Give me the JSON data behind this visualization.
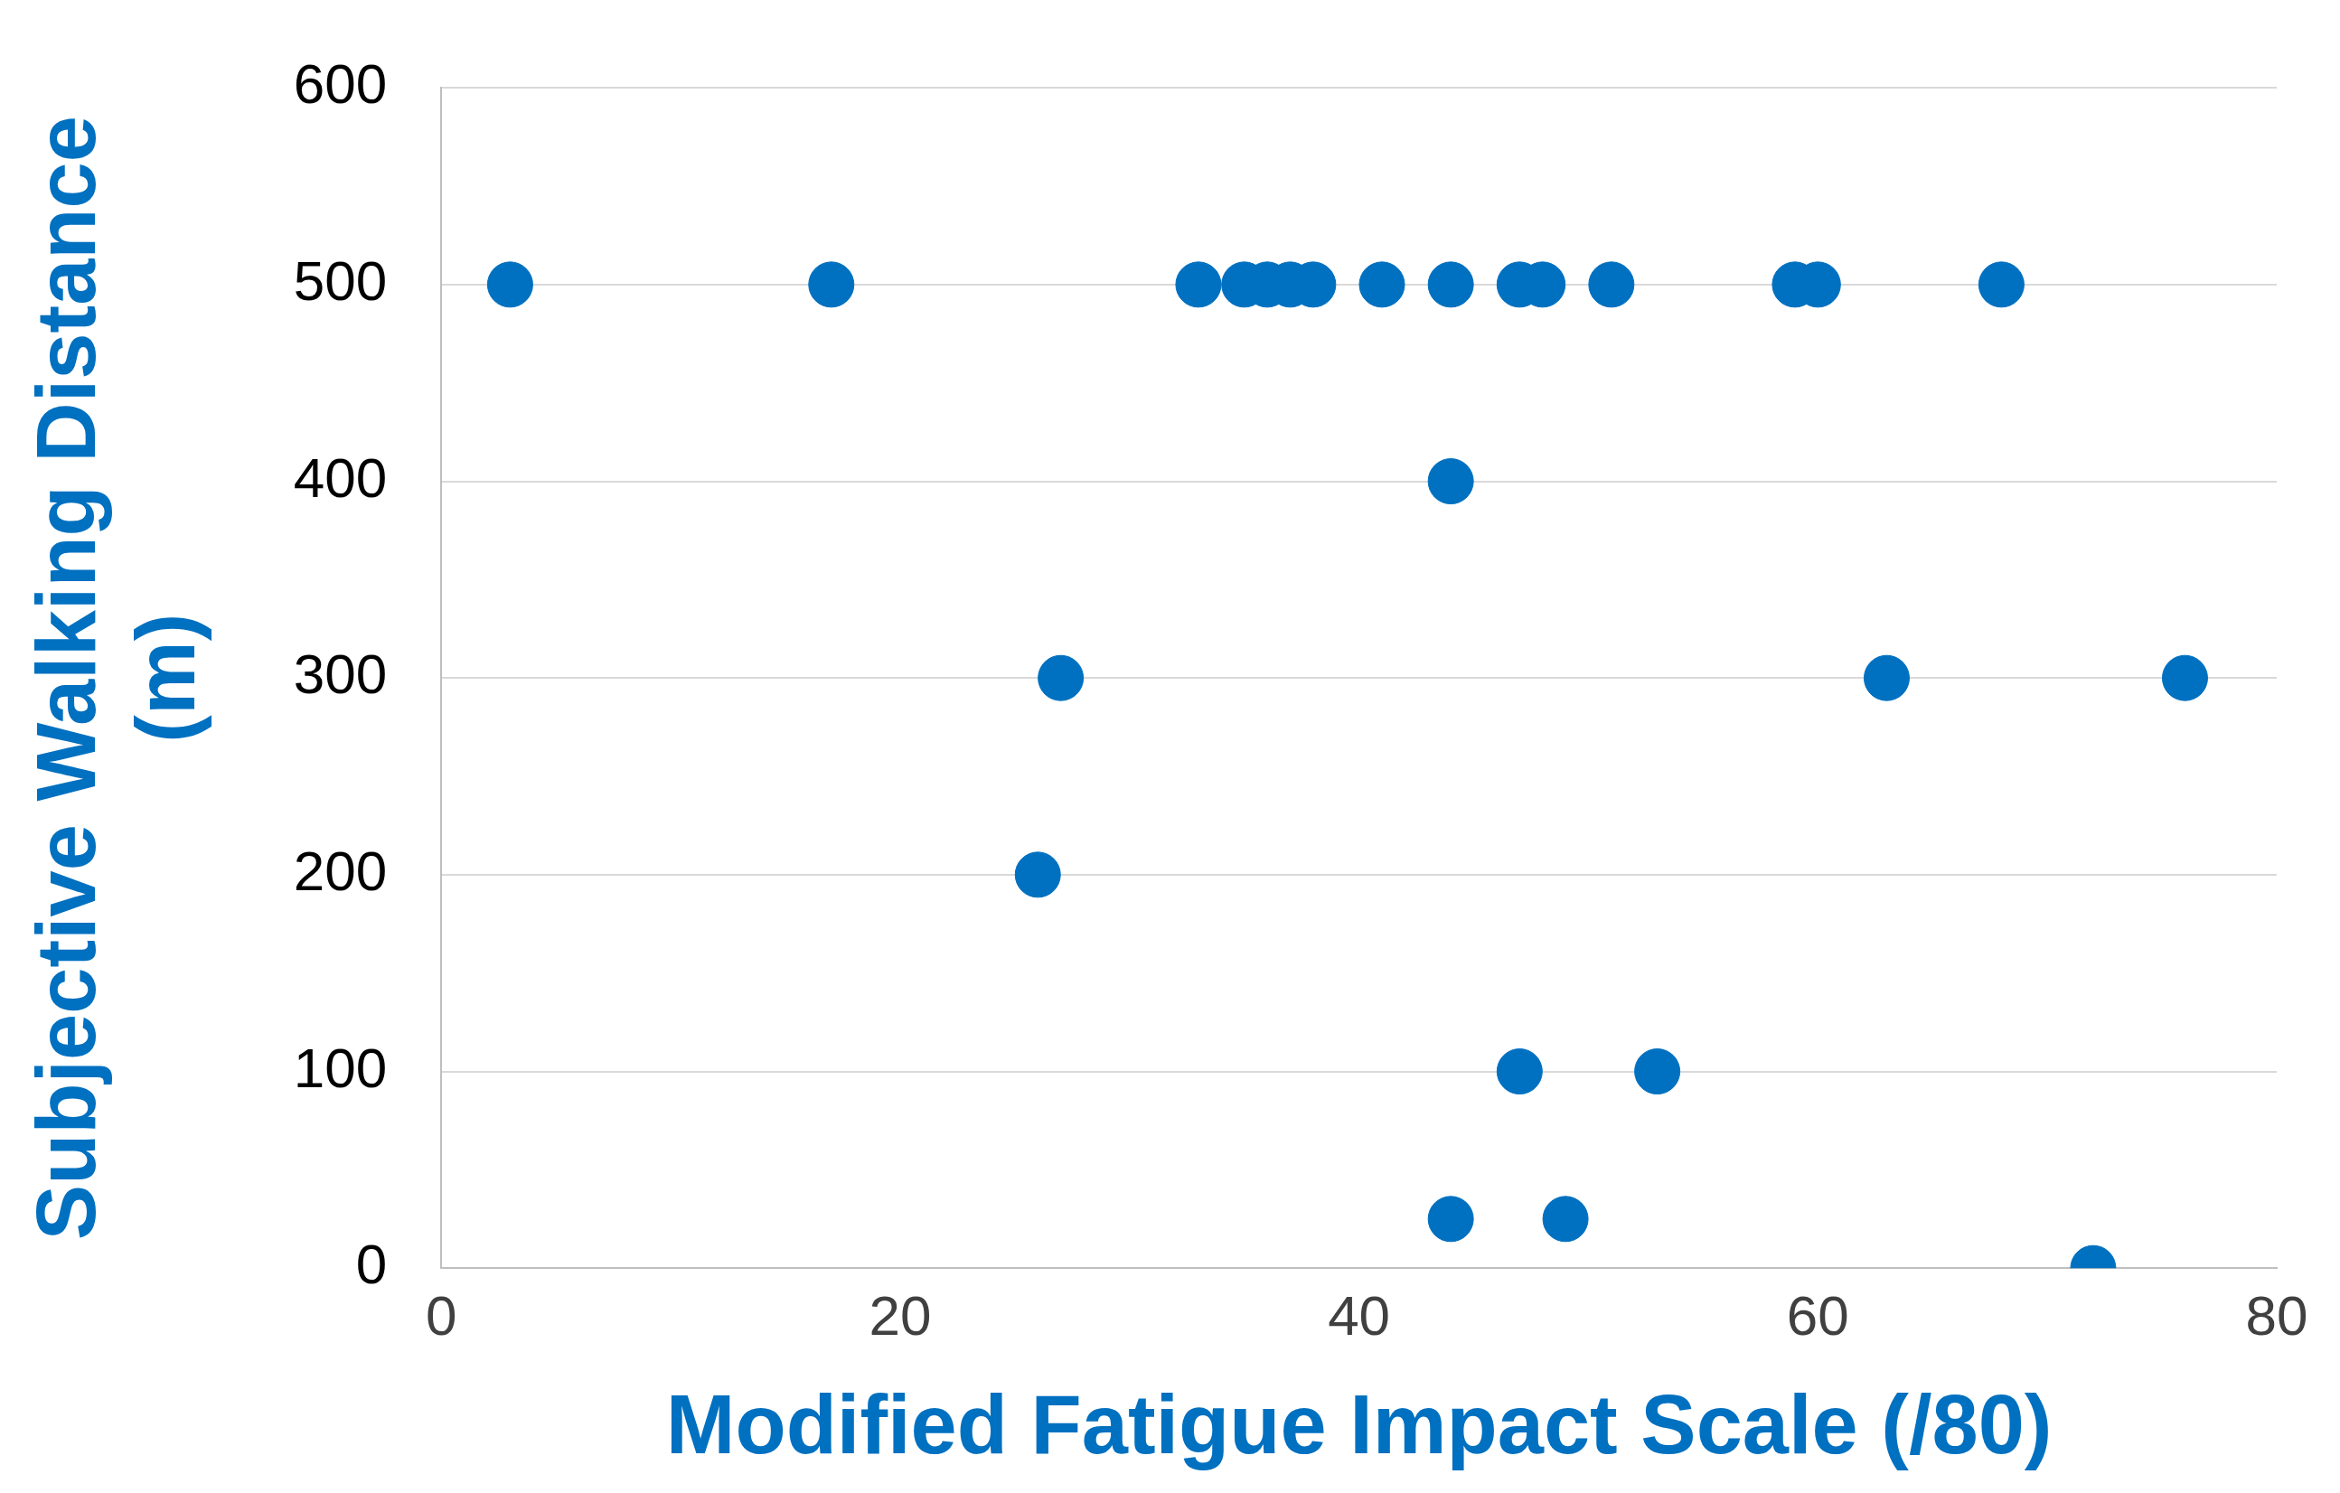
{
  "chart_data": {
    "type": "scatter",
    "xlabel": "Modified Fatigue Impact Scale (/80)",
    "ylabel": "Subjective Walking Distance (m)",
    "x": [
      3,
      17,
      33,
      35,
      36,
      37,
      38,
      41,
      44,
      47,
      48,
      51,
      59,
      60,
      68,
      44,
      27,
      63,
      76,
      26,
      47,
      53,
      44,
      49,
      72
    ],
    "values": [
      500,
      500,
      500,
      500,
      500,
      500,
      500,
      500,
      500,
      500,
      500,
      500,
      500,
      500,
      500,
      400,
      300,
      300,
      300,
      200,
      100,
      100,
      25,
      25,
      0
    ],
    "color": "#0070c0",
    "marker": "circle",
    "xlim": [
      0,
      80
    ],
    "xticks": [
      0,
      20,
      40,
      60,
      80
    ],
    "ylim": [
      0,
      600
    ],
    "yticks": [
      0,
      100,
      200,
      300,
      400,
      500,
      600
    ],
    "grid": "y",
    "legend": false
  }
}
